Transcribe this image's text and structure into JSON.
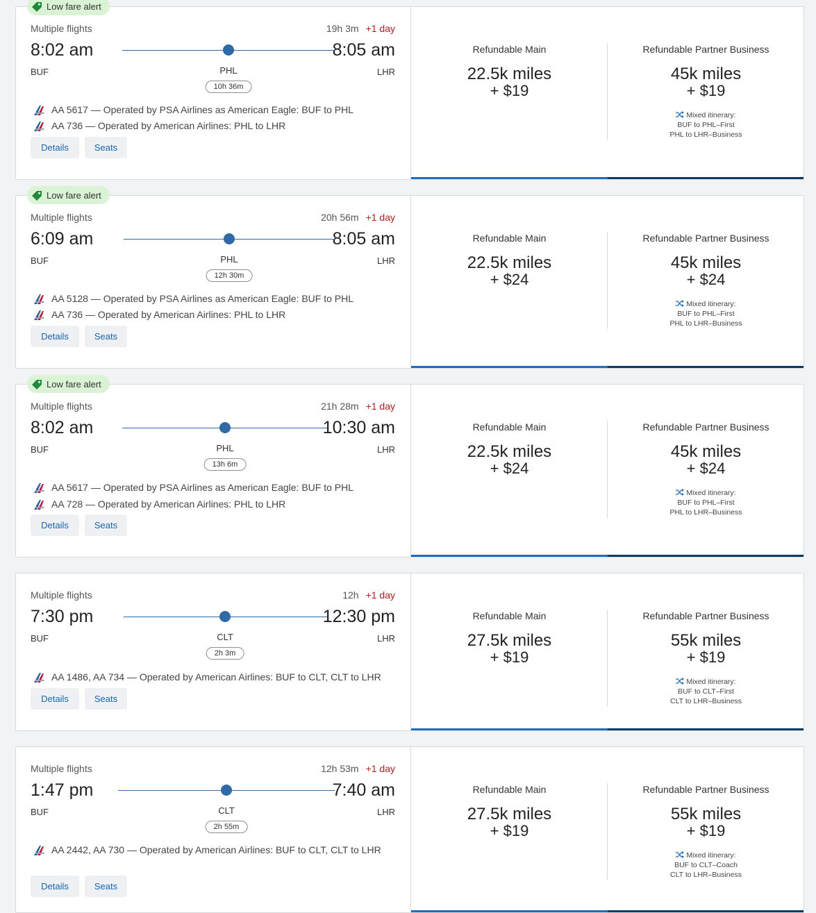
{
  "colors": {
    "accent": "#1b6dc1",
    "accent_dark": "#0a3a66",
    "badge_bg": "#d9f3d4",
    "plus_day": "#c41a1a",
    "route_line": "#2e69a8"
  },
  "results": [
    {
      "badge": "Low fare alert",
      "multi": "Multiple flights",
      "duration": "19h 3m",
      "plus_day": "+1 day",
      "dep_time": "8:02 am",
      "arr_time": "8:05 am",
      "dep_code": "BUF",
      "via_code": "PHL",
      "arr_code": "LHR",
      "layover": "10h 36m",
      "segments": [
        "AA 5617 — Operated by PSA Airlines as American Eagle: BUF to PHL",
        "AA 736 — Operated by American Airlines: PHL to LHR"
      ],
      "details": "Details",
      "seats": "Seats",
      "fares": [
        {
          "title": "Refundable Main",
          "miles": "22.5k miles",
          "cash": "+ $19"
        },
        {
          "title": "Refundable Partner Business",
          "miles": "45k miles",
          "cash": "+ $19",
          "mixed_label": "Mixed itinerary:",
          "mixed_1": "BUF to PHL–First",
          "mixed_2": "PHL to LHR–Business"
        }
      ]
    },
    {
      "badge": "Low fare alert",
      "multi": "Multiple flights",
      "duration": "20h 56m",
      "plus_day": "+1 day",
      "dep_time": "6:09 am",
      "arr_time": "8:05 am",
      "dep_code": "BUF",
      "via_code": "PHL",
      "arr_code": "LHR",
      "layover": "12h 30m",
      "segments": [
        "AA 5128 — Operated by PSA Airlines as American Eagle: BUF to PHL",
        "AA 736 — Operated by American Airlines: PHL to LHR"
      ],
      "details": "Details",
      "seats": "Seats",
      "fares": [
        {
          "title": "Refundable Main",
          "miles": "22.5k miles",
          "cash": "+ $24"
        },
        {
          "title": "Refundable Partner Business",
          "miles": "45k miles",
          "cash": "+ $24",
          "mixed_label": "Mixed itinerary:",
          "mixed_1": "BUF to PHL–First",
          "mixed_2": "PHL to LHR–Business"
        }
      ]
    },
    {
      "badge": "Low fare alert",
      "multi": "Multiple flights",
      "duration": "21h 28m",
      "plus_day": "+1 day",
      "dep_time": "8:02 am",
      "arr_time": "10:30 am",
      "dep_code": "BUF",
      "via_code": "PHL",
      "arr_code": "LHR",
      "layover": "13h 6m",
      "segments": [
        "AA 5617 — Operated by PSA Airlines as American Eagle: BUF to PHL",
        "AA 728 — Operated by American Airlines: PHL to LHR"
      ],
      "details": "Details",
      "seats": "Seats",
      "fares": [
        {
          "title": "Refundable Main",
          "miles": "22.5k miles",
          "cash": "+ $24"
        },
        {
          "title": "Refundable Partner Business",
          "miles": "45k miles",
          "cash": "+ $24",
          "mixed_label": "Mixed itinerary:",
          "mixed_1": "BUF to PHL–First",
          "mixed_2": "PHL to LHR–Business"
        }
      ]
    },
    {
      "badge": "",
      "multi": "Multiple flights",
      "duration": "12h",
      "plus_day": "+1 day",
      "dep_time": "7:30 pm",
      "arr_time": "12:30 pm",
      "dep_code": "BUF",
      "via_code": "CLT",
      "arr_code": "LHR",
      "layover": "2h 3m",
      "segments": [
        "AA 1486, AA 734 — Operated by American Airlines: BUF to CLT, CLT to LHR"
      ],
      "details": "Details",
      "seats": "Seats",
      "fares": [
        {
          "title": "Refundable Main",
          "miles": "27.5k miles",
          "cash": "+ $19"
        },
        {
          "title": "Refundable Partner Business",
          "miles": "55k miles",
          "cash": "+ $19",
          "mixed_label": "Mixed itinerary:",
          "mixed_1": "BUF to CLT–First",
          "mixed_2": "CLT to LHR–Business"
        }
      ]
    },
    {
      "badge": "",
      "multi": "Multiple flights",
      "duration": "12h 53m",
      "plus_day": "+1 day",
      "dep_time": "1:47 pm",
      "arr_time": "7:40 am",
      "dep_code": "BUF",
      "via_code": "CLT",
      "arr_code": "LHR",
      "layover": "2h 55m",
      "segments": [
        "AA 2442, AA 730 — Operated by American Airlines: BUF to CLT, CLT to LHR"
      ],
      "details": "Details",
      "seats": "Seats",
      "fares": [
        {
          "title": "Refundable Main",
          "miles": "27.5k miles",
          "cash": "+ $19"
        },
        {
          "title": "Refundable Partner Business",
          "miles": "55k miles",
          "cash": "+ $19",
          "mixed_label": "Mixed itinerary:",
          "mixed_1": "BUF to CLT–Coach",
          "mixed_2": "CLT to LHR–Business"
        }
      ]
    }
  ]
}
